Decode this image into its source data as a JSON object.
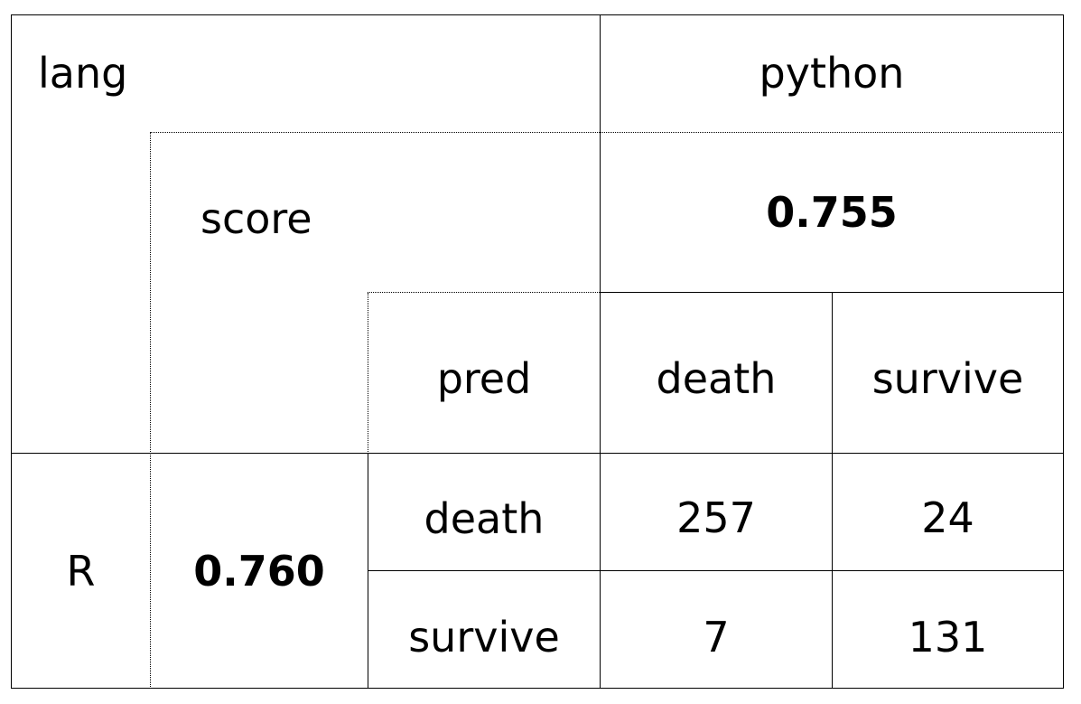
{
  "chart_data": {
    "type": "table",
    "header": {
      "corner_label": "lang",
      "column_lang": "python",
      "score_label": "score",
      "column_score": "0.755",
      "pred_label": "pred",
      "pred_columns": [
        "death",
        "survive"
      ]
    },
    "rows_group": {
      "lang": "R",
      "score": "0.760",
      "rows": [
        {
          "label": "death",
          "values": [
            "257",
            "24"
          ]
        },
        {
          "label": "survive",
          "values": [
            "7",
            "131"
          ]
        }
      ]
    }
  }
}
